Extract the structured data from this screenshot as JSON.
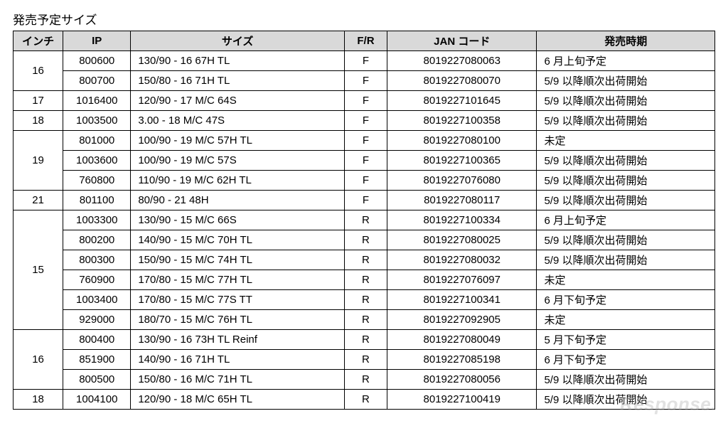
{
  "title": "発売予定サイズ",
  "headers": {
    "inch": "インチ",
    "ip": "IP",
    "size": "サイズ",
    "fr": "F/R",
    "jan": "JAN コード",
    "release": "発売時期"
  },
  "groups": [
    {
      "inch": "16",
      "rows": [
        {
          "ip": "800600",
          "size": "130/90 - 16 67H TL",
          "fr": "F",
          "jan": "8019227080063",
          "release": "6 月上旬予定"
        },
        {
          "ip": "800700",
          "size": "150/80 - 16 71H TL",
          "fr": "F",
          "jan": "8019227080070",
          "release": "5/9 以降順次出荷開始"
        }
      ]
    },
    {
      "inch": "17",
      "rows": [
        {
          "ip": "1016400",
          "size": "120/90 - 17 M/C 64S",
          "fr": "F",
          "jan": "8019227101645",
          "release": "5/9 以降順次出荷開始"
        }
      ]
    },
    {
      "inch": "18",
      "rows": [
        {
          "ip": "1003500",
          "size": "3.00 - 18 M/C 47S",
          "fr": "F",
          "jan": "8019227100358",
          "release": "5/9 以降順次出荷開始"
        }
      ]
    },
    {
      "inch": "19",
      "rows": [
        {
          "ip": "801000",
          "size": "100/90 - 19 M/C 57H TL",
          "fr": "F",
          "jan": "8019227080100",
          "release": "未定"
        },
        {
          "ip": "1003600",
          "size": "100/90 - 19 M/C 57S",
          "fr": "F",
          "jan": "8019227100365",
          "release": "5/9 以降順次出荷開始"
        },
        {
          "ip": "760800",
          "size": "110/90 - 19 M/C 62H TL",
          "fr": "F",
          "jan": "8019227076080",
          "release": "5/9 以降順次出荷開始"
        }
      ]
    },
    {
      "inch": "21",
      "rows": [
        {
          "ip": "801100",
          "size": "80/90 - 21 48H",
          "fr": "F",
          "jan": "8019227080117",
          "release": "5/9 以降順次出荷開始"
        }
      ]
    },
    {
      "inch": "15",
      "rows": [
        {
          "ip": "1003300",
          "size": "130/90 - 15 M/C 66S",
          "fr": "R",
          "jan": "8019227100334",
          "release": "6 月上旬予定"
        },
        {
          "ip": "800200",
          "size": "140/90 - 15 M/C 70H TL",
          "fr": "R",
          "jan": "8019227080025",
          "release": "5/9 以降順次出荷開始"
        },
        {
          "ip": "800300",
          "size": "150/90 - 15 M/C 74H TL",
          "fr": "R",
          "jan": "8019227080032",
          "release": "5/9 以降順次出荷開始"
        },
        {
          "ip": "760900",
          "size": "170/80 - 15 M/C 77H TL",
          "fr": "R",
          "jan": "8019227076097",
          "release": "未定"
        },
        {
          "ip": "1003400",
          "size": "170/80 - 15 M/C 77S TT",
          "fr": "R",
          "jan": "8019227100341",
          "release": "6 月下旬予定"
        },
        {
          "ip": "929000",
          "size": "180/70 - 15 M/C 76H TL",
          "fr": "R",
          "jan": "8019227092905",
          "release": "未定"
        }
      ]
    },
    {
      "inch": "16",
      "rows": [
        {
          "ip": "800400",
          "size": "130/90 - 16 73H TL Reinf",
          "fr": "R",
          "jan": "8019227080049",
          "release": "5 月下旬予定"
        },
        {
          "ip": "851900",
          "size": "140/90 - 16 71H TL",
          "fr": "R",
          "jan": "8019227085198",
          "release": "6 月下旬予定"
        },
        {
          "ip": "800500",
          "size": "150/80 - 16 M/C 71H TL",
          "fr": "R",
          "jan": "8019227080056",
          "release": "5/9 以降順次出荷開始"
        }
      ]
    },
    {
      "inch": "18",
      "rows": [
        {
          "ip": "1004100",
          "size": "120/90 - 18 M/C 65H TL",
          "fr": "R",
          "jan": "8019227100419",
          "release": "5/9 以降順次出荷開始"
        }
      ]
    }
  ],
  "watermark": "Response."
}
